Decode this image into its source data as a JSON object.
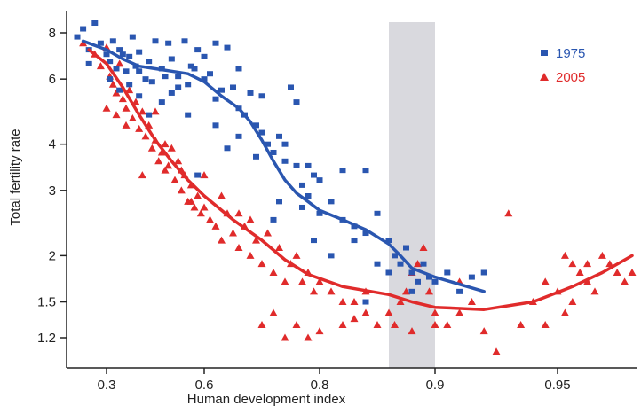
{
  "chart_data": {
    "type": "scatter",
    "title": "",
    "xlabel": "Human development index",
    "ylabel": "Total fertility rate",
    "y_scale": "log",
    "x_ticks": [
      "0.3",
      "0.6",
      "0.8",
      "0.9",
      "0.95"
    ],
    "y_ticks": [
      "1.2",
      "1.5",
      "2",
      "3",
      "4",
      "6",
      "8"
    ],
    "y_tick_values": [
      1.2,
      1.5,
      2,
      3,
      4,
      6,
      8
    ],
    "shaded_region": [
      0.86,
      0.9
    ],
    "legend_position": "top-right",
    "series": [
      {
        "name": "1975",
        "marker": "square",
        "color": "#2a56b0",
        "points": [
          [
            0.25,
            7.8
          ],
          [
            0.26,
            8.2
          ],
          [
            0.28,
            8.5
          ],
          [
            0.27,
            7.2
          ],
          [
            0.29,
            7.5
          ],
          [
            0.3,
            7.0
          ],
          [
            0.31,
            6.7
          ],
          [
            0.32,
            7.6
          ],
          [
            0.33,
            6.4
          ],
          [
            0.34,
            7.2
          ],
          [
            0.35,
            7.0
          ],
          [
            0.36,
            6.3
          ],
          [
            0.37,
            6.9
          ],
          [
            0.38,
            7.8
          ],
          [
            0.39,
            6.5
          ],
          [
            0.4,
            7.1
          ],
          [
            0.42,
            6.0
          ],
          [
            0.43,
            6.7
          ],
          [
            0.45,
            7.6
          ],
          [
            0.47,
            6.4
          ],
          [
            0.49,
            7.5
          ],
          [
            0.5,
            6.8
          ],
          [
            0.52,
            6.1
          ],
          [
            0.54,
            7.6
          ],
          [
            0.56,
            6.5
          ],
          [
            0.58,
            7.2
          ],
          [
            0.6,
            6.9
          ],
          [
            0.61,
            6.2
          ],
          [
            0.62,
            7.5
          ],
          [
            0.64,
            7.3
          ],
          [
            0.65,
            5.7
          ],
          [
            0.66,
            6.4
          ],
          [
            0.27,
            6.6
          ],
          [
            0.31,
            6.0
          ],
          [
            0.34,
            5.6
          ],
          [
            0.37,
            5.8
          ],
          [
            0.4,
            6.3
          ],
          [
            0.44,
            5.9
          ],
          [
            0.48,
            6.1
          ],
          [
            0.5,
            5.5
          ],
          [
            0.55,
            5.8
          ],
          [
            0.57,
            6.4
          ],
          [
            0.6,
            6.0
          ],
          [
            0.62,
            5.3
          ],
          [
            0.63,
            5.6
          ],
          [
            0.66,
            5.0
          ],
          [
            0.67,
            4.8
          ],
          [
            0.68,
            5.5
          ],
          [
            0.69,
            4.5
          ],
          [
            0.7,
            4.3
          ],
          [
            0.7,
            5.4
          ],
          [
            0.71,
            4.0
          ],
          [
            0.72,
            3.8
          ],
          [
            0.73,
            4.2
          ],
          [
            0.74,
            3.6
          ],
          [
            0.75,
            5.7
          ],
          [
            0.76,
            3.5
          ],
          [
            0.77,
            3.1
          ],
          [
            0.78,
            2.9
          ],
          [
            0.79,
            3.3
          ],
          [
            0.8,
            2.6
          ],
          [
            0.81,
            2.8
          ],
          [
            0.82,
            2.5
          ],
          [
            0.83,
            2.4
          ],
          [
            0.84,
            2.3
          ],
          [
            0.85,
            2.6
          ],
          [
            0.86,
            2.2
          ],
          [
            0.865,
            2.0
          ],
          [
            0.87,
            1.9
          ],
          [
            0.875,
            2.1
          ],
          [
            0.88,
            1.8
          ],
          [
            0.885,
            1.7
          ],
          [
            0.89,
            1.9
          ],
          [
            0.895,
            1.75
          ],
          [
            0.9,
            1.7
          ],
          [
            0.905,
            1.8
          ],
          [
            0.91,
            1.6
          ],
          [
            0.915,
            1.75
          ],
          [
            0.92,
            1.8
          ],
          [
            0.86,
            1.8
          ],
          [
            0.84,
            1.5
          ],
          [
            0.82,
            3.4
          ],
          [
            0.84,
            3.4
          ],
          [
            0.8,
            3.2
          ],
          [
            0.78,
            3.5
          ],
          [
            0.76,
            5.2
          ],
          [
            0.74,
            4.0
          ],
          [
            0.72,
            2.5
          ],
          [
            0.73,
            2.8
          ],
          [
            0.69,
            3.7
          ],
          [
            0.66,
            4.2
          ],
          [
            0.64,
            3.9
          ],
          [
            0.62,
            4.5
          ],
          [
            0.58,
            3.3
          ],
          [
            0.55,
            4.8
          ],
          [
            0.52,
            5.7
          ],
          [
            0.47,
            5.2
          ],
          [
            0.43,
            4.8
          ],
          [
            0.4,
            5.4
          ],
          [
            0.77,
            2.7
          ],
          [
            0.79,
            2.2
          ],
          [
            0.81,
            2.0
          ],
          [
            0.85,
            1.9
          ],
          [
            0.83,
            2.2
          ],
          [
            0.88,
            1.6
          ]
        ]
      },
      {
        "name": "2005",
        "marker": "triangle",
        "color": "#e02b2b",
        "points": [
          [
            0.26,
            7.5
          ],
          [
            0.28,
            7.0
          ],
          [
            0.29,
            6.5
          ],
          [
            0.3,
            7.3
          ],
          [
            0.31,
            6.1
          ],
          [
            0.32,
            5.8
          ],
          [
            0.33,
            5.5
          ],
          [
            0.34,
            6.6
          ],
          [
            0.35,
            5.3
          ],
          [
            0.36,
            5.0
          ],
          [
            0.37,
            5.6
          ],
          [
            0.38,
            4.7
          ],
          [
            0.39,
            5.2
          ],
          [
            0.4,
            4.4
          ],
          [
            0.41,
            4.9
          ],
          [
            0.42,
            4.2
          ],
          [
            0.43,
            4.5
          ],
          [
            0.44,
            3.9
          ],
          [
            0.45,
            4.1
          ],
          [
            0.46,
            3.6
          ],
          [
            0.47,
            3.8
          ],
          [
            0.48,
            3.4
          ],
          [
            0.49,
            3.5
          ],
          [
            0.5,
            3.9
          ],
          [
            0.51,
            3.2
          ],
          [
            0.52,
            3.6
          ],
          [
            0.53,
            3.0
          ],
          [
            0.54,
            3.3
          ],
          [
            0.55,
            2.8
          ],
          [
            0.56,
            3.1
          ],
          [
            0.57,
            2.7
          ],
          [
            0.58,
            2.9
          ],
          [
            0.59,
            2.6
          ],
          [
            0.6,
            3.3
          ],
          [
            0.61,
            2.5
          ],
          [
            0.62,
            2.4
          ],
          [
            0.63,
            2.2
          ],
          [
            0.64,
            2.6
          ],
          [
            0.65,
            2.3
          ],
          [
            0.66,
            2.1
          ],
          [
            0.67,
            2.4
          ],
          [
            0.68,
            2.0
          ],
          [
            0.69,
            2.2
          ],
          [
            0.7,
            1.9
          ],
          [
            0.71,
            2.3
          ],
          [
            0.72,
            1.8
          ],
          [
            0.73,
            2.1
          ],
          [
            0.74,
            1.7
          ],
          [
            0.75,
            1.9
          ],
          [
            0.76,
            2.0
          ],
          [
            0.77,
            1.7
          ],
          [
            0.78,
            1.8
          ],
          [
            0.79,
            1.6
          ],
          [
            0.8,
            1.7
          ],
          [
            0.81,
            1.6
          ],
          [
            0.82,
            1.5
          ],
          [
            0.83,
            1.5
          ],
          [
            0.84,
            1.6
          ],
          [
            0.85,
            1.3
          ],
          [
            0.86,
            1.4
          ],
          [
            0.865,
            1.3
          ],
          [
            0.87,
            1.5
          ],
          [
            0.875,
            1.6
          ],
          [
            0.88,
            1.8
          ],
          [
            0.885,
            1.9
          ],
          [
            0.89,
            2.1
          ],
          [
            0.895,
            1.6
          ],
          [
            0.9,
            1.4
          ],
          [
            0.905,
            1.3
          ],
          [
            0.91,
            1.4
          ],
          [
            0.915,
            1.5
          ],
          [
            0.92,
            1.25
          ],
          [
            0.925,
            1.1
          ],
          [
            0.93,
            2.6
          ],
          [
            0.935,
            1.3
          ],
          [
            0.94,
            1.5
          ],
          [
            0.945,
            1.7
          ],
          [
            0.95,
            1.6
          ],
          [
            0.955,
            2.0
          ],
          [
            0.96,
            1.9
          ],
          [
            0.965,
            1.8
          ],
          [
            0.97,
            1.7
          ],
          [
            0.975,
            1.6
          ],
          [
            0.98,
            2.0
          ],
          [
            0.985,
            1.9
          ],
          [
            0.99,
            1.8
          ],
          [
            0.995,
            1.7
          ],
          [
            1.0,
            1.8
          ],
          [
            0.945,
            1.3
          ],
          [
            0.955,
            1.4
          ],
          [
            0.96,
            1.5
          ],
          [
            0.97,
            1.9
          ],
          [
            0.3,
            5.0
          ],
          [
            0.33,
            4.8
          ],
          [
            0.36,
            4.5
          ],
          [
            0.41,
            3.3
          ],
          [
            0.45,
            4.9
          ],
          [
            0.48,
            4.0
          ],
          [
            0.53,
            3.4
          ],
          [
            0.56,
            2.8
          ],
          [
            0.6,
            2.7
          ],
          [
            0.63,
            2.9
          ],
          [
            0.66,
            2.6
          ],
          [
            0.68,
            2.5
          ],
          [
            0.7,
            1.3
          ],
          [
            0.72,
            1.4
          ],
          [
            0.74,
            1.2
          ],
          [
            0.76,
            1.3
          ],
          [
            0.78,
            1.2
          ],
          [
            0.8,
            1.25
          ],
          [
            0.82,
            1.3
          ],
          [
            0.83,
            1.35
          ],
          [
            0.84,
            1.4
          ],
          [
            0.88,
            1.25
          ],
          [
            0.9,
            1.3
          ],
          [
            0.91,
            1.7
          ]
        ]
      }
    ],
    "fit_lines": [
      {
        "name": "1975",
        "color": "#2a56b0",
        "points": [
          [
            0.26,
            7.6
          ],
          [
            0.3,
            7.2
          ],
          [
            0.35,
            6.8
          ],
          [
            0.4,
            6.5
          ],
          [
            0.45,
            6.4
          ],
          [
            0.5,
            6.3
          ],
          [
            0.55,
            6.2
          ],
          [
            0.6,
            5.9
          ],
          [
            0.63,
            5.4
          ],
          [
            0.66,
            5.0
          ],
          [
            0.68,
            4.6
          ],
          [
            0.7,
            4.1
          ],
          [
            0.72,
            3.6
          ],
          [
            0.74,
            3.2
          ],
          [
            0.76,
            2.95
          ],
          [
            0.78,
            2.8
          ],
          [
            0.8,
            2.65
          ],
          [
            0.82,
            2.5
          ],
          [
            0.84,
            2.35
          ],
          [
            0.86,
            2.15
          ],
          [
            0.87,
            2.0
          ],
          [
            0.88,
            1.85
          ],
          [
            0.9,
            1.75
          ],
          [
            0.92,
            1.6
          ]
        ]
      },
      {
        "name": "2005",
        "color": "#e02b2b",
        "points": [
          [
            0.27,
            7.2
          ],
          [
            0.3,
            6.6
          ],
          [
            0.35,
            5.7
          ],
          [
            0.4,
            4.8
          ],
          [
            0.45,
            4.1
          ],
          [
            0.5,
            3.6
          ],
          [
            0.55,
            3.2
          ],
          [
            0.6,
            2.9
          ],
          [
            0.65,
            2.5
          ],
          [
            0.7,
            2.2
          ],
          [
            0.74,
            1.95
          ],
          [
            0.78,
            1.78
          ],
          [
            0.82,
            1.65
          ],
          [
            0.86,
            1.57
          ],
          [
            0.88,
            1.5
          ],
          [
            0.9,
            1.45
          ],
          [
            0.92,
            1.43
          ],
          [
            0.94,
            1.5
          ],
          [
            0.96,
            1.65
          ],
          [
            0.98,
            1.8
          ],
          [
            1.0,
            2.0
          ]
        ]
      }
    ]
  }
}
